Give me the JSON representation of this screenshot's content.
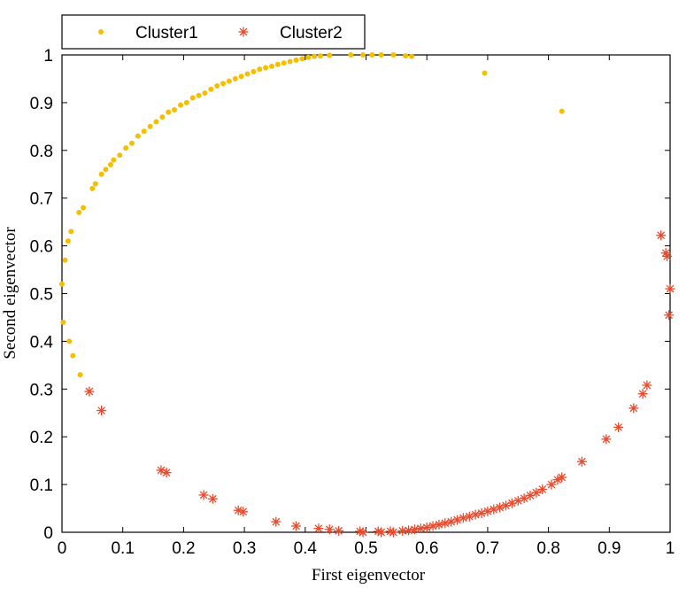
{
  "chart_data": {
    "type": "scatter",
    "title": "",
    "xlabel": "First eigenvector",
    "ylabel": "Second eigenvector",
    "xlim": [
      0,
      1
    ],
    "ylim": [
      0,
      1
    ],
    "xticks": [
      "0",
      "0.1",
      "0.2",
      "0.3",
      "0.4",
      "0.5",
      "0.6",
      "0.7",
      "0.8",
      "0.9",
      "1"
    ],
    "yticks": [
      "0",
      "0.1",
      "0.2",
      "0.3",
      "0.4",
      "0.5",
      "0.6",
      "0.7",
      "0.8",
      "0.9",
      "1"
    ],
    "grid": false,
    "legend_position": "top-left outside",
    "series": [
      {
        "name": "Cluster1",
        "marker": "dot",
        "color": "#F5BE00",
        "points": [
          [
            0.0,
            0.52
          ],
          [
            0.002,
            0.44
          ],
          [
            0.005,
            0.57
          ],
          [
            0.01,
            0.61
          ],
          [
            0.015,
            0.63
          ],
          [
            0.012,
            0.4
          ],
          [
            0.018,
            0.37
          ],
          [
            0.03,
            0.33
          ],
          [
            0.028,
            0.67
          ],
          [
            0.035,
            0.68
          ],
          [
            0.05,
            0.72
          ],
          [
            0.055,
            0.73
          ],
          [
            0.065,
            0.75
          ],
          [
            0.072,
            0.76
          ],
          [
            0.08,
            0.77
          ],
          [
            0.085,
            0.78
          ],
          [
            0.095,
            0.79
          ],
          [
            0.105,
            0.805
          ],
          [
            0.115,
            0.815
          ],
          [
            0.125,
            0.83
          ],
          [
            0.135,
            0.84
          ],
          [
            0.145,
            0.85
          ],
          [
            0.155,
            0.86
          ],
          [
            0.165,
            0.87
          ],
          [
            0.175,
            0.88
          ],
          [
            0.185,
            0.885
          ],
          [
            0.195,
            0.895
          ],
          [
            0.205,
            0.9
          ],
          [
            0.215,
            0.91
          ],
          [
            0.225,
            0.915
          ],
          [
            0.235,
            0.92
          ],
          [
            0.245,
            0.928
          ],
          [
            0.255,
            0.935
          ],
          [
            0.265,
            0.94
          ],
          [
            0.275,
            0.945
          ],
          [
            0.285,
            0.95
          ],
          [
            0.295,
            0.955
          ],
          [
            0.305,
            0.96
          ],
          [
            0.315,
            0.965
          ],
          [
            0.325,
            0.97
          ],
          [
            0.335,
            0.973
          ],
          [
            0.345,
            0.976
          ],
          [
            0.355,
            0.98
          ],
          [
            0.365,
            0.983
          ],
          [
            0.375,
            0.986
          ],
          [
            0.385,
            0.989
          ],
          [
            0.395,
            0.992
          ],
          [
            0.405,
            0.995
          ],
          [
            0.415,
            0.997
          ],
          [
            0.425,
            0.998
          ],
          [
            0.44,
            0.999
          ],
          [
            0.475,
            1.0
          ],
          [
            0.495,
            1.0
          ],
          [
            0.51,
            1.0
          ],
          [
            0.525,
            1.0
          ],
          [
            0.545,
            1.0
          ],
          [
            0.565,
            0.998
          ],
          [
            0.575,
            0.997
          ],
          [
            0.695,
            0.962
          ],
          [
            0.822,
            0.882
          ]
        ]
      },
      {
        "name": "Cluster2",
        "marker": "asterisk",
        "color": "#E84A2C",
        "points": [
          [
            0.045,
            0.295
          ],
          [
            0.065,
            0.255
          ],
          [
            0.163,
            0.13
          ],
          [
            0.172,
            0.125
          ],
          [
            0.233,
            0.078
          ],
          [
            0.248,
            0.07
          ],
          [
            0.29,
            0.046
          ],
          [
            0.298,
            0.043
          ],
          [
            0.352,
            0.022
          ],
          [
            0.385,
            0.013
          ],
          [
            0.422,
            0.008
          ],
          [
            0.44,
            0.006
          ],
          [
            0.455,
            0.003
          ],
          [
            0.49,
            0.002
          ],
          [
            0.495,
            0.0
          ],
          [
            0.52,
            0.002
          ],
          [
            0.525,
            0.0
          ],
          [
            0.54,
            0.002
          ],
          [
            0.545,
            0.0
          ],
          [
            0.56,
            0.003
          ],
          [
            0.57,
            0.004
          ],
          [
            0.58,
            0.006
          ],
          [
            0.59,
            0.008
          ],
          [
            0.6,
            0.01
          ],
          [
            0.61,
            0.013
          ],
          [
            0.62,
            0.016
          ],
          [
            0.63,
            0.019
          ],
          [
            0.64,
            0.022
          ],
          [
            0.65,
            0.026
          ],
          [
            0.66,
            0.03
          ],
          [
            0.67,
            0.033
          ],
          [
            0.68,
            0.037
          ],
          [
            0.69,
            0.04
          ],
          [
            0.7,
            0.044
          ],
          [
            0.71,
            0.048
          ],
          [
            0.72,
            0.052
          ],
          [
            0.73,
            0.056
          ],
          [
            0.74,
            0.061
          ],
          [
            0.75,
            0.066
          ],
          [
            0.76,
            0.071
          ],
          [
            0.77,
            0.077
          ],
          [
            0.78,
            0.083
          ],
          [
            0.79,
            0.09
          ],
          [
            0.805,
            0.1
          ],
          [
            0.815,
            0.11
          ],
          [
            0.822,
            0.115
          ],
          [
            0.855,
            0.148
          ],
          [
            0.895,
            0.195
          ],
          [
            0.915,
            0.22
          ],
          [
            0.94,
            0.26
          ],
          [
            0.955,
            0.29
          ],
          [
            0.962,
            0.308
          ],
          [
            0.985,
            0.622
          ],
          [
            0.993,
            0.585
          ],
          [
            0.995,
            0.578
          ],
          [
            1.0,
            0.51
          ],
          [
            0.998,
            0.455
          ]
        ]
      }
    ]
  }
}
